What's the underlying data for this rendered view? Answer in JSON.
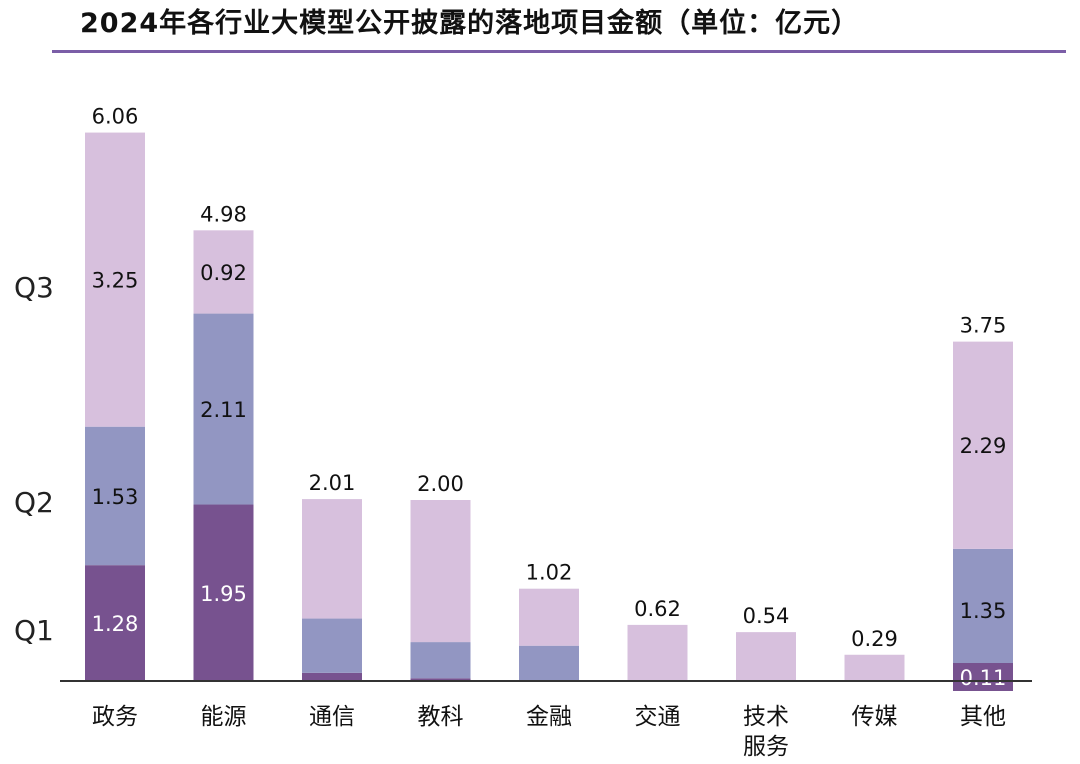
{
  "title": "2024年各行业大模型公开披露的落地项目金额（单位：亿元）",
  "chart_data": {
    "type": "bar",
    "stacked": true,
    "categories": [
      "政务",
      "能源",
      "通信",
      "教科",
      "金融",
      "交通",
      "技术\n服务",
      "传媒",
      "其他"
    ],
    "series": [
      {
        "name": "Q1",
        "color": "#77528f",
        "values": [
          1.28,
          1.95,
          0.09,
          0.03,
          0.01,
          0,
          0,
          0,
          0.11
        ]
      },
      {
        "name": "Q2",
        "color": "#9296c2",
        "values": [
          1.53,
          2.11,
          0.6,
          0.4,
          0.38,
          0,
          0,
          0,
          1.35
        ]
      },
      {
        "name": "Q3",
        "color": "#d7c0dd",
        "values": [
          3.25,
          0.92,
          1.32,
          1.57,
          0.63,
          0.62,
          0.54,
          0.29,
          2.29
        ]
      }
    ],
    "totals": [
      6.06,
      4.98,
      2.01,
      2.0,
      1.02,
      0.62,
      0.54,
      0.29,
      3.75
    ],
    "labels": {
      "segments": [
        {
          "category": 0,
          "series": 0,
          "text": "1.28"
        },
        {
          "category": 0,
          "series": 1,
          "text": "1.53"
        },
        {
          "category": 0,
          "series": 2,
          "text": "3.25"
        },
        {
          "category": 1,
          "series": 0,
          "text": "1.95"
        },
        {
          "category": 1,
          "series": 1,
          "text": "2.11"
        },
        {
          "category": 1,
          "series": 2,
          "text": "0.92"
        },
        {
          "category": 8,
          "series": 0,
          "text": "0.11"
        },
        {
          "category": 8,
          "series": 1,
          "text": "1.35"
        },
        {
          "category": 8,
          "series": 2,
          "text": "2.29"
        }
      ],
      "totals": [
        "6.06",
        "4.98",
        "2.01",
        "2.00",
        "1.02",
        "0.62",
        "0.54",
        "0.29",
        "3.75"
      ]
    },
    "ylim": [
      0,
      7
    ],
    "grid": false,
    "legend": "left, inline text labels Q1 / Q2 / Q3"
  }
}
